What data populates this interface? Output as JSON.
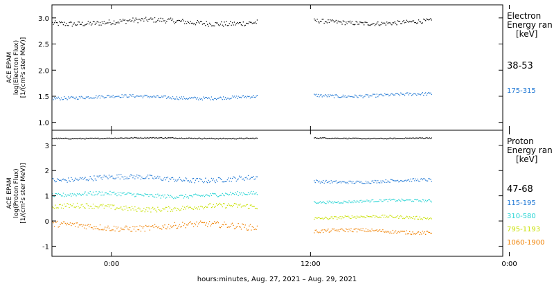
{
  "chart_data": [
    {
      "type": "scatter",
      "ylabel_lines": [
        "ACE EPAM",
        "log(Electron Flux)",
        "[1/(cm²s ster MeV)]"
      ],
      "ylim": [
        0.85,
        3.25
      ],
      "y_ticks": [
        "1.0",
        "1.5",
        "2.0",
        "2.5",
        "3.0"
      ],
      "legend_title_lines": [
        "Electron",
        "Energy ran",
        "[keV]"
      ],
      "series": [
        {
          "name": "38-53",
          "color": "#000000",
          "segments": [
            {
              "start": "-3.6",
              "end": "8.8",
              "base": 2.93,
              "noise": 0.05
            },
            {
              "start": "12.2",
              "end": "19.3",
              "base": 2.93,
              "noise": 0.04
            }
          ]
        },
        {
          "name": "175-315",
          "color": "#1f77d4",
          "segments": [
            {
              "start": "-3.6",
              "end": "8.8",
              "base": 1.49,
              "noise": 0.03
            },
            {
              "start": "12.2",
              "end": "19.3",
              "base": 1.53,
              "noise": 0.03
            }
          ]
        }
      ]
    },
    {
      "type": "scatter",
      "ylabel_lines": [
        "ACE EPAM",
        "log(Proton Flux)",
        "[1/(cm²s ster MeV)]"
      ],
      "ylim": [
        -1.4,
        3.6
      ],
      "y_ticks": [
        "-1",
        "0",
        "1",
        "2",
        "3"
      ],
      "legend_title_lines": [
        "Proton",
        "Energy ran",
        "[keV]"
      ],
      "series": [
        {
          "name": "47-68",
          "color": "#000000",
          "segments": [
            {
              "start": "-3.6",
              "end": "8.8",
              "base": 3.3,
              "noise": 0.02
            },
            {
              "start": "12.2",
              "end": "19.3",
              "base": 3.3,
              "noise": 0.02
            }
          ]
        },
        {
          "name": "115-195",
          "color": "#1f77d4",
          "segments": [
            {
              "start": "-3.6",
              "end": "8.8",
              "base": 1.7,
              "noise": 0.1
            },
            {
              "start": "12.2",
              "end": "19.3",
              "base": 1.6,
              "noise": 0.06
            }
          ]
        },
        {
          "name": "310-580",
          "color": "#22d3d3",
          "segments": [
            {
              "start": "-3.6",
              "end": "8.8",
              "base": 1.05,
              "noise": 0.08
            },
            {
              "start": "12.2",
              "end": "19.3",
              "base": 0.8,
              "noise": 0.05
            }
          ]
        },
        {
          "name": "795-1193",
          "color": "#c8e000",
          "segments": [
            {
              "start": "-3.6",
              "end": "8.8",
              "base": 0.55,
              "noise": 0.1
            },
            {
              "start": "12.2",
              "end": "19.3",
              "base": 0.15,
              "noise": 0.06
            }
          ]
        },
        {
          "name": "1060-1900",
          "color": "#f08000",
          "segments": [
            {
              "start": "-3.6",
              "end": "8.8",
              "base": -0.2,
              "noise": 0.12
            },
            {
              "start": "12.2",
              "end": "19.3",
              "base": -0.4,
              "noise": 0.07
            }
          ]
        }
      ]
    }
  ],
  "x_axis": {
    "xlim": [
      -3.6,
      23.6
    ],
    "ticks": [
      {
        "value": "0",
        "label": "0:00"
      },
      {
        "value": "12",
        "label": "12:00"
      },
      {
        "value": "24",
        "label": "0:00"
      }
    ],
    "label": "hours:minutes, Aug. 27, 2021 – Aug. 29, 2021"
  }
}
